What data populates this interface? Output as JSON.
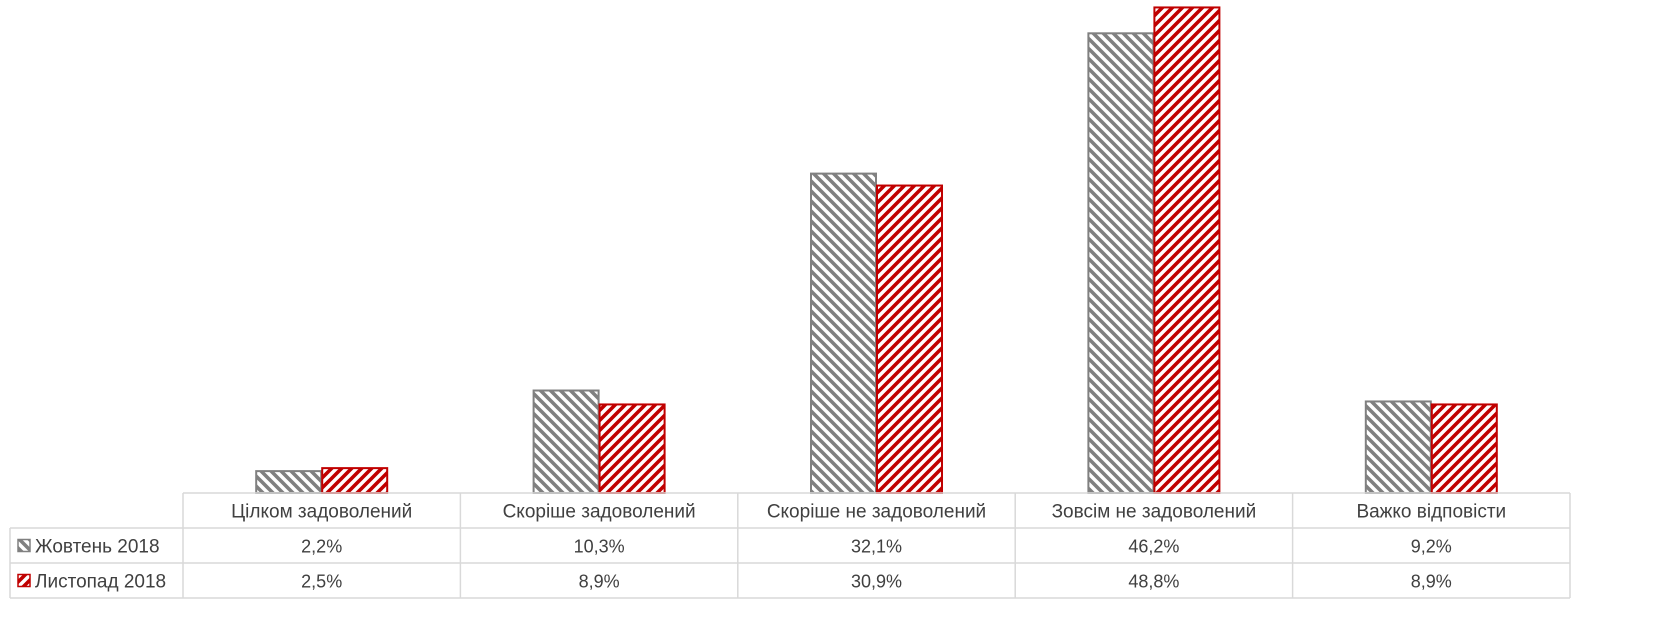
{
  "chart_data": {
    "type": "bar",
    "categories": [
      "Цілком задоволений",
      "Скоріше задоволений",
      "Скоріше не задоволений",
      "Зовсім не задоволений",
      "Важко відповісти"
    ],
    "series": [
      {
        "name": "Жовтень 2018",
        "values": [
          2.2,
          10.3,
          32.1,
          46.2,
          9.2
        ],
        "labels": [
          "2,2%",
          "10,3%",
          "32,1%",
          "46,2%",
          "9,2%"
        ],
        "color": "#808080",
        "pattern": "diagonal-stripes-down"
      },
      {
        "name": "Листопад 2018",
        "values": [
          2.5,
          8.9,
          30.9,
          48.8,
          8.9
        ],
        "labels": [
          "2,5%",
          "8,9%",
          "30,9%",
          "48,8%",
          "8,9%"
        ],
        "color": "#c00000",
        "pattern": "diagonal-stripes-up"
      }
    ],
    "title": "",
    "xlabel": "",
    "ylabel": "",
    "ylim": [
      0,
      50
    ],
    "data_table": true,
    "grid": false
  }
}
